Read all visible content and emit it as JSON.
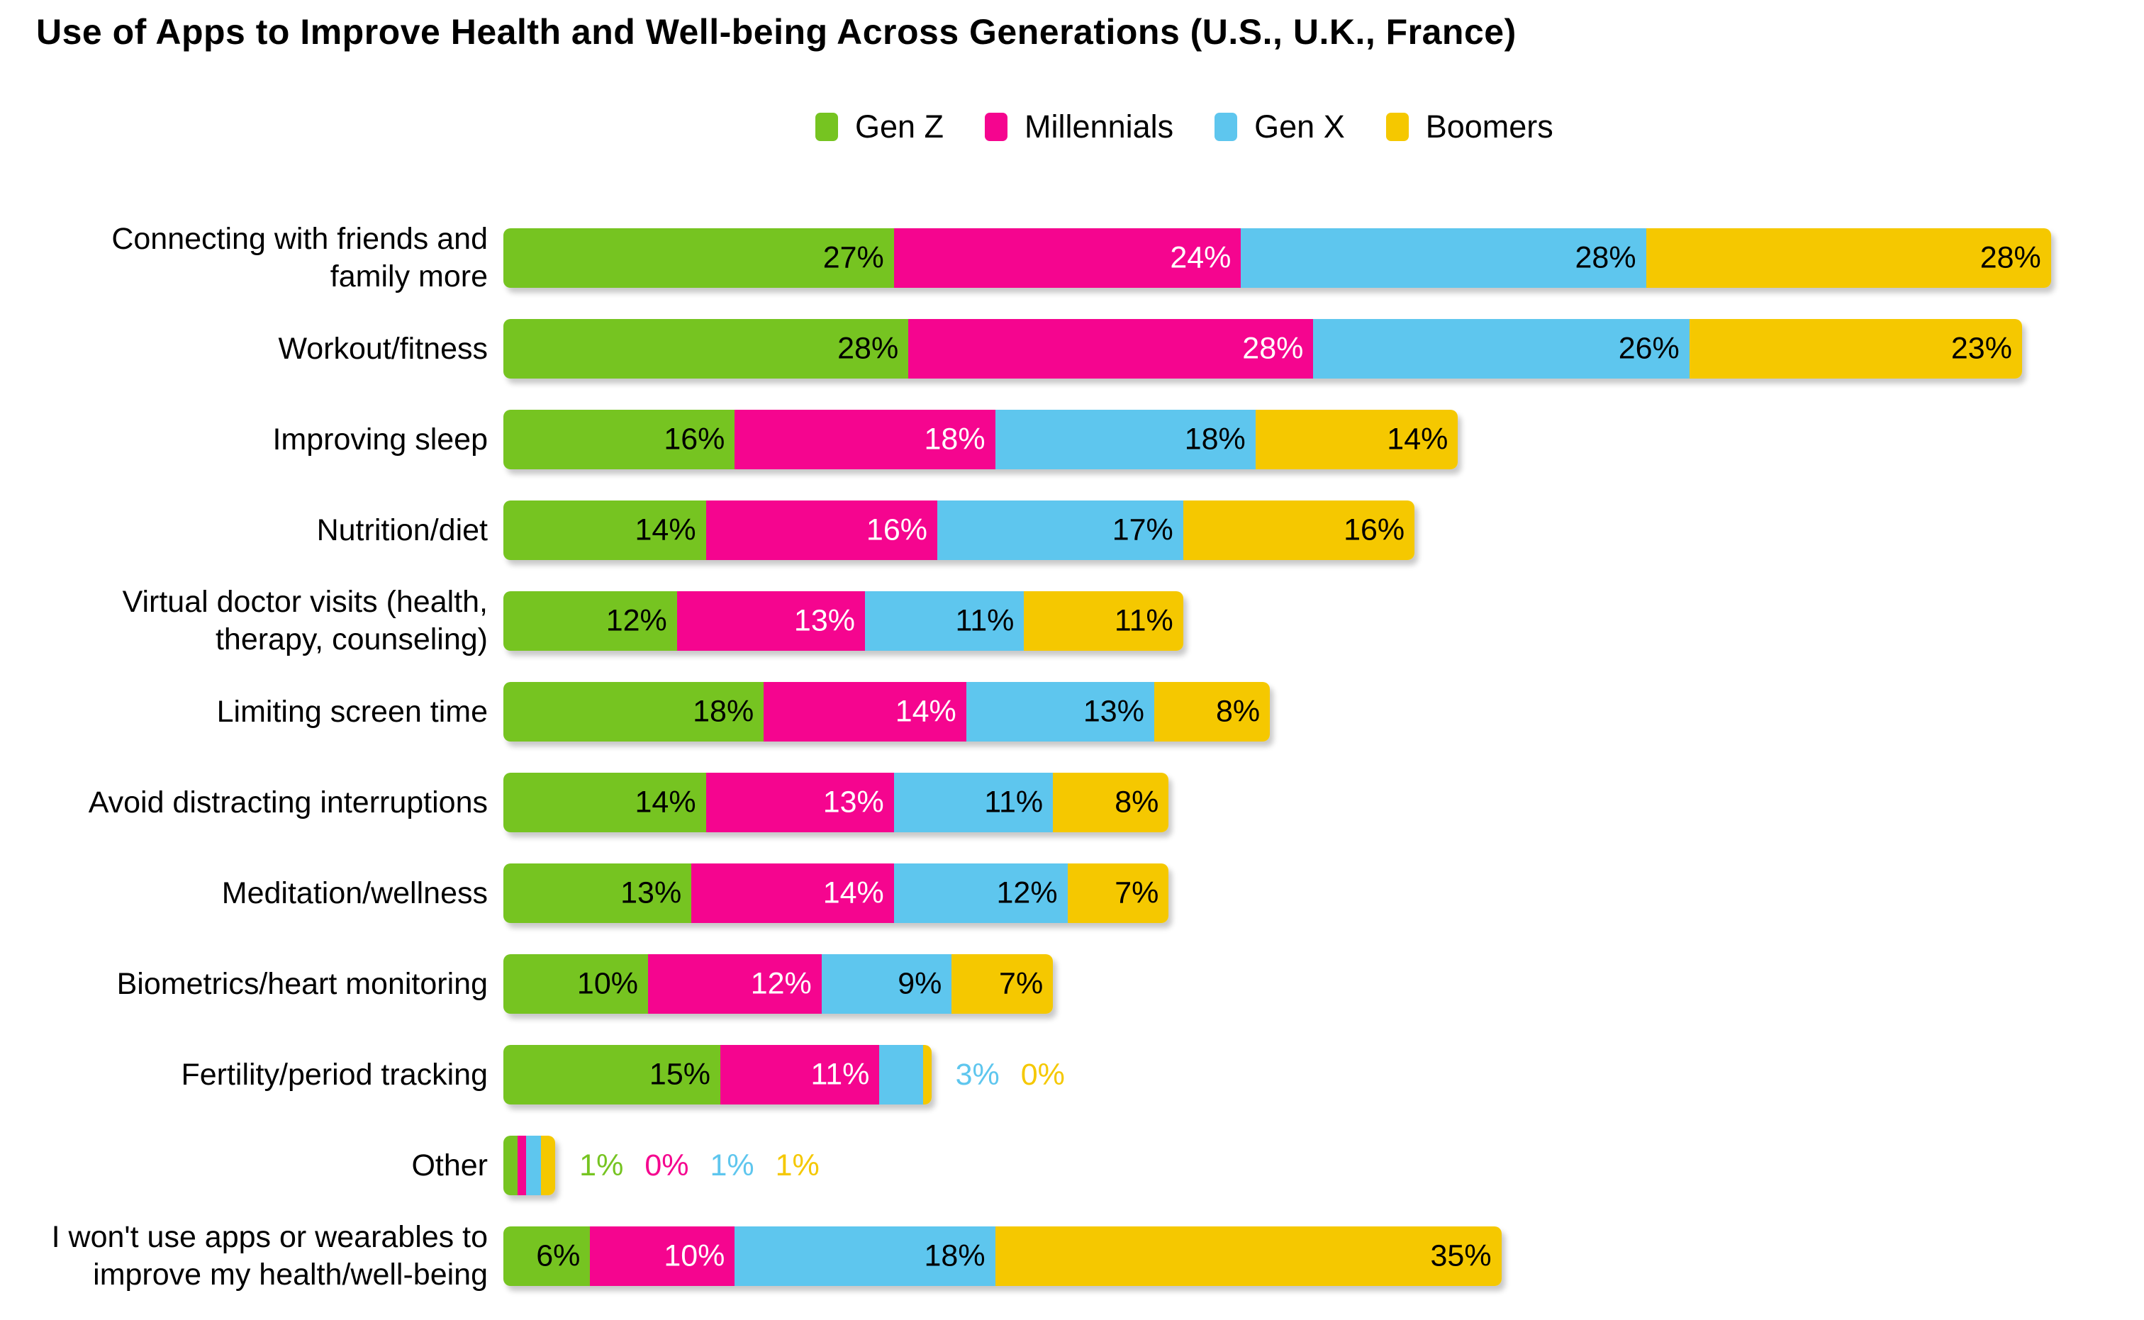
{
  "chart_data": {
    "type": "bar",
    "variant": "horizontal-stacked",
    "title": "Use of Apps to Improve Health and Well-being Across Generations (U.S., U.K., France)",
    "legend_position": "top-center",
    "axes": "none",
    "grid": false,
    "value_suffix": "%",
    "series": [
      {
        "name": "Gen Z",
        "color": "#76C421",
        "label_color": "#000000"
      },
      {
        "name": "Millennials",
        "color": "#F5058F",
        "label_color": "#FFFFFF"
      },
      {
        "name": "Gen X",
        "color": "#5EC6EE",
        "label_color": "#000000"
      },
      {
        "name": "Boomers",
        "color": "#F5C800",
        "label_color": "#000000"
      }
    ],
    "categories": [
      "Connecting with friends and\nfamily more",
      "Workout/fitness",
      "Improving sleep",
      "Nutrition/diet",
      "Virtual doctor visits (health,\ntherapy, counseling)",
      "Limiting screen time",
      "Avoid distracting interruptions",
      "Meditation/wellness",
      "Biometrics/heart monitoring",
      "Fertility/period tracking",
      "Other",
      "I won't use apps or wearables to\nimprove my health/well-being"
    ],
    "rows": [
      [
        27,
        24,
        28,
        28
      ],
      [
        28,
        28,
        26,
        23
      ],
      [
        16,
        18,
        18,
        14
      ],
      [
        14,
        16,
        17,
        16
      ],
      [
        12,
        13,
        11,
        11
      ],
      [
        18,
        14,
        13,
        8
      ],
      [
        14,
        13,
        11,
        8
      ],
      [
        13,
        14,
        12,
        7
      ],
      [
        10,
        12,
        9,
        7
      ],
      [
        15,
        11,
        3,
        0
      ],
      [
        1,
        0,
        1,
        1
      ],
      [
        6,
        10,
        18,
        35
      ]
    ]
  }
}
